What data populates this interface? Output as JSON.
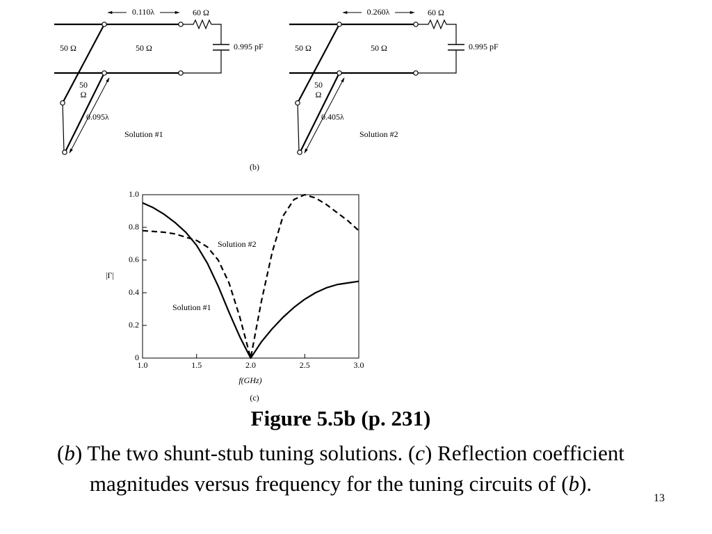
{
  "circuits": [
    {
      "length": "0.110λ",
      "load_r": "60 Ω",
      "z_left": "50 Ω",
      "z_mid": "50 Ω",
      "load_c": "0.995 pF",
      "stub_z": [
        "50",
        "Ω"
      ],
      "stub_length": "0.095λ",
      "label": "Solution #1"
    },
    {
      "length": "0.260λ",
      "load_r": "60 Ω",
      "z_left": "50 Ω",
      "z_mid": "50 Ω",
      "load_c": "0.995 pF",
      "stub_z": [
        "50",
        "Ω"
      ],
      "stub_length": "0.405λ",
      "label": "Solution #2"
    }
  ],
  "circuits_caption": "(b)",
  "chart_data": {
    "type": "line",
    "caption": "(c)",
    "x_label": "f(GHz)",
    "y_label": "|Γ|",
    "x": [
      1.0,
      1.1,
      1.2,
      1.3,
      1.4,
      1.5,
      1.6,
      1.7,
      1.8,
      1.9,
      2.0,
      2.1,
      2.2,
      2.3,
      2.4,
      2.5,
      2.6,
      2.7,
      2.8,
      2.9,
      3.0
    ],
    "series": [
      {
        "name": "Solution #1",
        "color": "#000000",
        "dash": false,
        "values": [
          0.95,
          0.92,
          0.88,
          0.83,
          0.77,
          0.69,
          0.58,
          0.44,
          0.28,
          0.13,
          0,
          0.1,
          0.18,
          0.25,
          0.31,
          0.36,
          0.4,
          0.43,
          0.45,
          0.46,
          0.47
        ]
      },
      {
        "name": "Solution #2",
        "color": "#000000",
        "dash": true,
        "values": [
          0.78,
          0.775,
          0.77,
          0.76,
          0.74,
          0.72,
          0.68,
          0.6,
          0.46,
          0.25,
          0,
          0.35,
          0.65,
          0.87,
          0.97,
          1.0,
          0.98,
          0.94,
          0.89,
          0.84,
          0.78
        ]
      }
    ],
    "xlim": [
      1.0,
      3.0
    ],
    "ylim": [
      0,
      1.0
    ],
    "xticks": [
      {
        "value": 1.0,
        "label": "1.0"
      },
      {
        "value": 1.5,
        "label": "1.5"
      },
      {
        "value": 2.0,
        "label": "2.0"
      },
      {
        "value": 2.5,
        "label": "2.5"
      },
      {
        "value": 3.0,
        "label": "3.0"
      }
    ],
    "yticks": [
      0,
      0.2,
      0.4,
      0.6,
      0.8,
      {
        "value": 1.0,
        "label": "1.0"
      }
    ],
    "grid": false
  },
  "caption": {
    "title": "Figure 5.5b  (p. 231)",
    "body": [
      {
        "text": "(",
        "italic": false
      },
      {
        "text": "b",
        "italic": true
      },
      {
        "text": ") The two shunt-stub tuning solutions. (",
        "italic": false
      },
      {
        "text": "c",
        "italic": true
      },
      {
        "text": ") Reflection coefficient magnitudes versus frequency for the tuning circuits of (",
        "italic": false
      },
      {
        "text": "b",
        "italic": true
      },
      {
        "text": ").",
        "italic": false
      }
    ]
  },
  "page_number": "13"
}
